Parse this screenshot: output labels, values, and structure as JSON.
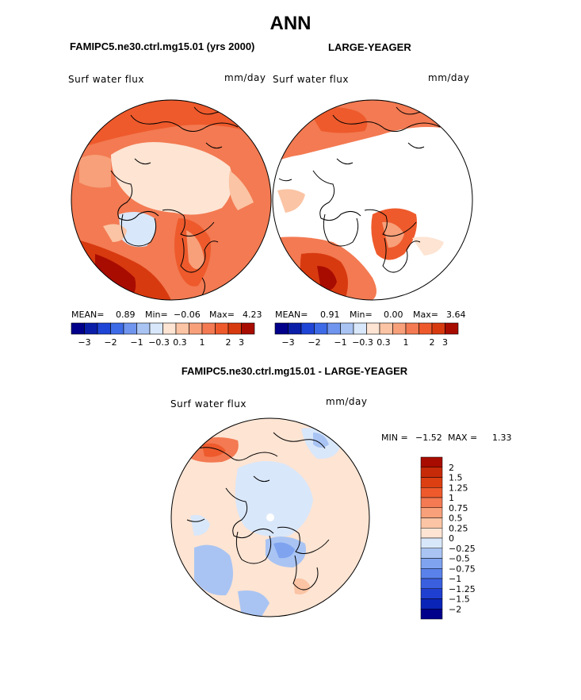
{
  "page": {
    "title": "ANN"
  },
  "panels": [
    {
      "case_title": "FAMIPC5.ne30.ctrl.mg15.01 (yrs 2000)",
      "variable": "Surf water flux",
      "units": "mm/day",
      "stats": {
        "mean_label": "MEAN=",
        "mean": "0.89",
        "min_label": "Min=",
        "min": "−0.06",
        "max_label": "Max=",
        "max": "4.23"
      }
    },
    {
      "case_title": "LARGE-YEAGER",
      "variable": "Surf water flux",
      "units": "mm/day",
      "stats": {
        "mean_label": "MEAN=",
        "mean": "0.91",
        "min_label": "Min=",
        "min": "0.00",
        "max_label": "Max=",
        "max": "3.64"
      }
    },
    {
      "case_title": "FAMIPC5.ne30.ctrl.mg15.01 - LARGE-YEAGER",
      "variable": "Surf water flux",
      "units": "mm/day",
      "stats": {
        "min_label": "MIN =",
        "min": "−1.52",
        "max_label": "MAX =",
        "max": "1.33"
      }
    }
  ],
  "colorbars": {
    "horizontal_tick_labels": [
      "−3",
      "−2",
      "−1",
      "−0.3",
      "0.3",
      "1",
      "2",
      "3"
    ],
    "horizontal_colors": [
      "#00008b",
      "#0a1ea8",
      "#1f45d6",
      "#3d6ae6",
      "#6f95ee",
      "#a9c4f3",
      "#d9e7fa",
      "#fde4d3",
      "#fbc4a4",
      "#f7a07a",
      "#f37a52",
      "#ee5a2c",
      "#d83a10",
      "#a80c00"
    ],
    "vertical_tick_labels": [
      "2",
      "1.5",
      "1.25",
      "1",
      "0.75",
      "0.5",
      "0.25",
      "0",
      "−0.25",
      "−0.5",
      "−0.75",
      "−1",
      "−1.25",
      "−1.5",
      "−2"
    ],
    "vertical_colors": [
      "#a80c00",
      "#c72a08",
      "#dc3f12",
      "#ee5a2c",
      "#f37a52",
      "#f7a07a",
      "#fbc4a4",
      "#fde4d3",
      "#d9e7fa",
      "#a9c4f3",
      "#7fa3ef",
      "#5a82ea",
      "#3a60e0",
      "#1f3fd0",
      "#0a24b8",
      "#00008b"
    ]
  },
  "colors": {
    "land_outline": "#000000",
    "no_data": "#ffffff"
  },
  "chart_data": [
    {
      "type": "heatmap",
      "title": "FAMIPC5.ne30.ctrl.mg15.01 (yrs 2000)",
      "projection": "north-polar-stereographic",
      "variable": "Surf water flux",
      "units": "mm/day",
      "mean": 0.89,
      "min": -0.06,
      "max": 4.23,
      "levels": [
        -3,
        -2,
        -1,
        -0.3,
        0.3,
        1,
        2,
        3
      ]
    },
    {
      "type": "heatmap",
      "title": "LARGE-YEAGER",
      "projection": "north-polar-stereographic",
      "variable": "Surf water flux",
      "units": "mm/day",
      "mean": 0.91,
      "min": 0.0,
      "max": 3.64,
      "levels": [
        -3,
        -2,
        -1,
        -0.3,
        0.3,
        1,
        2,
        3
      ]
    },
    {
      "type": "heatmap",
      "title": "FAMIPC5.ne30.ctrl.mg15.01 - LARGE-YEAGER",
      "projection": "north-polar-stereographic",
      "variable": "Surf water flux",
      "units": "mm/day",
      "min": -1.52,
      "max": 1.33,
      "levels": [
        -2,
        -1.5,
        -1.25,
        -1,
        -0.75,
        -0.5,
        -0.25,
        0,
        0.25,
        0.5,
        0.75,
        1,
        1.25,
        1.5,
        2
      ]
    }
  ]
}
